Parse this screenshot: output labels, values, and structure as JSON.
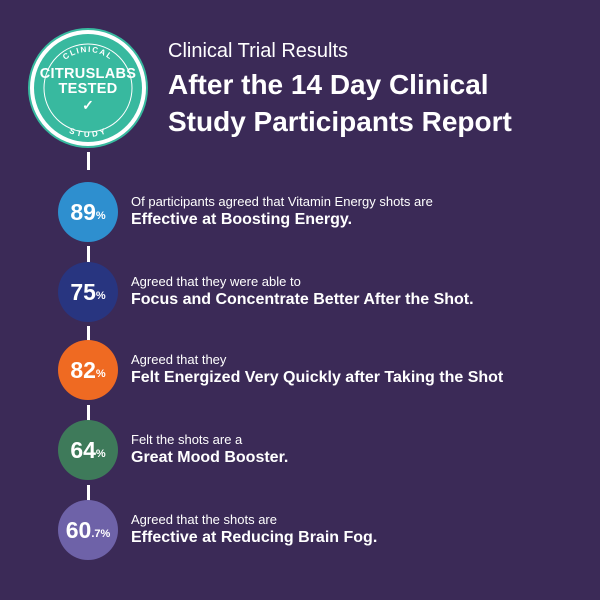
{
  "badge": {
    "top": "CLINICAL",
    "line1": "CITRUSLABS",
    "line2": "TESTED",
    "bottom": "STUDY",
    "check": "✓"
  },
  "header": {
    "subtitle": "Clinical Trial Results",
    "title_line1": "After the 14 Day Clinical",
    "title_line2": "Study Participants Report"
  },
  "stats": [
    {
      "value": "89",
      "unit": "%",
      "line1": "Of participants agreed that Vitamin Energy shots are",
      "line2": "Effective at Boosting Energy.",
      "color": "#2e8fcf"
    },
    {
      "value": "75",
      "unit": "%",
      "line1": "Agreed that they were able to",
      "line2": "Focus and Concentrate Better After the Shot.",
      "color": "#283580"
    },
    {
      "value": "82",
      "unit": "%",
      "line1": "Agreed that they",
      "line2": "Felt Energized Very Quickly after Taking the Shot",
      "color": "#ef6a22"
    },
    {
      "value": "64",
      "unit": "%",
      "line1": "Felt the shots are a",
      "line2": "Great Mood Booster.",
      "color": "#3e7a5a"
    },
    {
      "value": "60",
      "unit": ".7%",
      "line1": "Agreed that the shots are",
      "line2": "Effective at Reducing Brain Fog.",
      "color": "#6e62a8"
    }
  ]
}
